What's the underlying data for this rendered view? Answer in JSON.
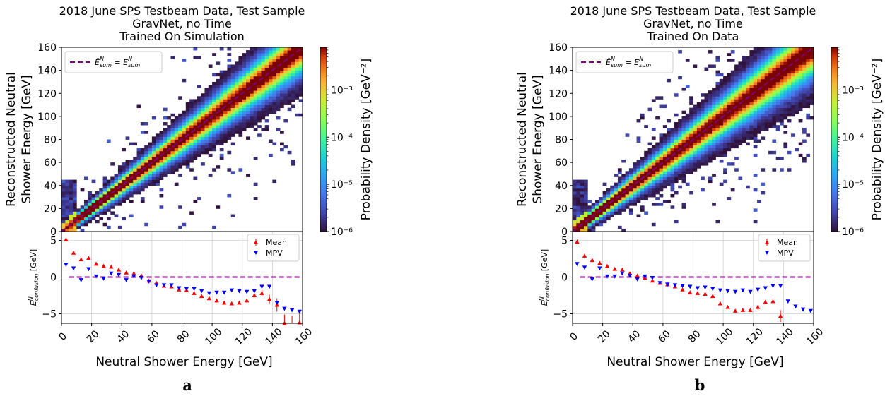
{
  "chart_data": [
    {
      "type": "heatmap",
      "panel_label": "a",
      "title_lines": [
        "2018 June SPS Testbeam Data, Test Sample",
        "GravNet, no Time",
        "Trained On Simulation"
      ],
      "xlabel": "Neutral Shower Energy [GeV]",
      "ylabel_lines": [
        "Reconstructed Neutral",
        "Shower Energy [GeV]"
      ],
      "xlim": [
        0,
        160
      ],
      "ylim": [
        0,
        160
      ],
      "xticks": [
        0,
        20,
        40,
        60,
        80,
        100,
        120,
        140,
        160
      ],
      "yticks": [
        0,
        20,
        40,
        60,
        80,
        100,
        120,
        140,
        160
      ],
      "legend": {
        "position": "upper-left",
        "entry": "Ê^N_sum = E^N_sum",
        "pre": "Ê",
        "sub": "sum",
        "sup": "N",
        "eq": " = E"
      },
      "diagonal": {
        "color": "#800080",
        "style": "dashed"
      },
      "colorbar": {
        "label": "Probability Density [GeV⁻²]",
        "scale": "log",
        "range": [
          1e-06,
          0.008
        ],
        "ticks": [
          {
            "value": 1e-06,
            "label": "10⁻⁶"
          },
          {
            "value": 1e-05,
            "label": "10⁻⁵"
          },
          {
            "value": 0.0001,
            "label": "10⁻⁴"
          },
          {
            "value": 0.001,
            "label": "10⁻³"
          }
        ]
      },
      "spread": 1.0,
      "residual": {
        "ylabel": "E^N_confusion [GeV]",
        "ylabel_base": "E",
        "ylabel_sup": "N",
        "ylabel_sub": "confusion",
        "ylabel_unit": " [GeV]",
        "ylim": [
          -6.3,
          6.2
        ],
        "yticks": [
          -5,
          0,
          5
        ],
        "zero_line_color": "#800080",
        "legend_position": "upper-right",
        "series": [
          {
            "name": "Mean",
            "color": "#ff0000",
            "marker": "triangle-up",
            "x": [
              3,
              8,
              13,
              18,
              23,
              28,
              33,
              38,
              43,
              48,
              53,
              58,
              63,
              68,
              73,
              78,
              83,
              88,
              93,
              98,
              103,
              108,
              113,
              118,
              123,
              128,
              133,
              138,
              143,
              148,
              153,
              158
            ],
            "y": [
              5.1,
              3.3,
              2.4,
              2.6,
              1.8,
              1.5,
              1.4,
              1.0,
              0.6,
              0.5,
              0.2,
              -0.5,
              -0.8,
              -1.2,
              -1.3,
              -1.7,
              -1.8,
              -2.2,
              -2.6,
              -2.9,
              -3.2,
              -3.5,
              -3.6,
              -3.5,
              -3.2,
              -2.5,
              -2.2,
              -3.0,
              -3.8,
              -6.3,
              -6.5,
              -6.2
            ],
            "err": [
              0.3,
              0.25,
              0.2,
              0.2,
              0.15,
              0.15,
              0.12,
              0.12,
              0.12,
              0.12,
              0.12,
              0.12,
              0.12,
              0.12,
              0.15,
              0.15,
              0.15,
              0.15,
              0.15,
              0.15,
              0.15,
              0.2,
              0.2,
              0.2,
              0.25,
              0.3,
              0.4,
              0.6,
              0.9,
              1.2,
              1.2,
              1.5
            ]
          },
          {
            "name": "MPV",
            "color": "#0000ff",
            "marker": "triangle-down",
            "x": [
              3,
              8,
              13,
              18,
              23,
              28,
              33,
              38,
              43,
              48,
              53,
              58,
              63,
              68,
              73,
              78,
              83,
              88,
              93,
              98,
              103,
              108,
              113,
              118,
              123,
              128,
              133,
              138,
              143,
              148,
              153,
              158
            ],
            "y": [
              1.7,
              1.2,
              -0.4,
              1.1,
              0.1,
              -0.2,
              0.5,
              0.3,
              -0.4,
              0.1,
              -0.1,
              -0.6,
              -1.1,
              -1.1,
              -1.1,
              -1.5,
              -1.6,
              -1.6,
              -1.9,
              -2.2,
              -2.1,
              -2.1,
              -1.8,
              -1.9,
              -2.0,
              -1.9,
              -1.3,
              -1.3,
              -3.5,
              -4.3,
              -4.5,
              -4.7
            ]
          }
        ]
      }
    },
    {
      "type": "heatmap",
      "panel_label": "b",
      "title_lines": [
        "2018 June SPS Testbeam Data, Test Sample",
        "GravNet, no Time",
        "Trained On Data"
      ],
      "xlabel": "Neutral Shower Energy [GeV]",
      "ylabel_lines": [
        "Reconstructed Neutral",
        "Shower Energy [GeV]"
      ],
      "xlim": [
        0,
        160
      ],
      "ylim": [
        0,
        160
      ],
      "xticks": [
        0,
        20,
        40,
        60,
        80,
        100,
        120,
        140,
        160
      ],
      "yticks": [
        0,
        20,
        40,
        60,
        80,
        100,
        120,
        140,
        160
      ],
      "legend": {
        "position": "upper-left",
        "entry": "Ê^N_sum = E^N_sum",
        "pre": "Ê",
        "sub": "sum",
        "sup": "N",
        "eq": " = E"
      },
      "diagonal": {
        "color": "#800080",
        "style": "dashed"
      },
      "colorbar": {
        "label": "Probability Density [GeV⁻²]",
        "scale": "log",
        "range": [
          1e-06,
          0.008
        ],
        "ticks": [
          {
            "value": 1e-06,
            "label": "10⁻⁶"
          },
          {
            "value": 1e-05,
            "label": "10⁻⁵"
          },
          {
            "value": 0.0001,
            "label": "10⁻⁴"
          },
          {
            "value": 0.001,
            "label": "10⁻³"
          }
        ]
      },
      "spread": 1.15,
      "residual": {
        "ylabel": "E^N_confusion [GeV]",
        "ylabel_base": "E",
        "ylabel_sup": "N",
        "ylabel_sub": "confusion",
        "ylabel_unit": " [GeV]",
        "ylim": [
          -6.3,
          6.2
        ],
        "yticks": [
          -5,
          0,
          5
        ],
        "zero_line_color": "#800080",
        "legend_position": "upper-right",
        "series": [
          {
            "name": "Mean",
            "color": "#ff0000",
            "marker": "triangle-up",
            "x": [
              3,
              8,
              13,
              18,
              23,
              28,
              33,
              38,
              43,
              48,
              53,
              58,
              63,
              68,
              73,
              78,
              83,
              88,
              93,
              98,
              103,
              108,
              113,
              118,
              123,
              128,
              133,
              138
            ],
            "y": [
              4.8,
              2.9,
              2.3,
              1.9,
              1.5,
              1.1,
              1.0,
              0.5,
              0.2,
              -0.1,
              -0.5,
              -0.8,
              -1.0,
              -1.3,
              -1.7,
              -2.1,
              -2.2,
              -2.3,
              -2.6,
              -3.6,
              -4.1,
              -4.6,
              -4.5,
              -4.5,
              -4.1,
              -3.4,
              -3.3,
              -5.3
            ],
            "err": [
              0.3,
              0.25,
              0.2,
              0.2,
              0.15,
              0.15,
              0.12,
              0.12,
              0.12,
              0.12,
              0.12,
              0.12,
              0.12,
              0.12,
              0.15,
              0.15,
              0.15,
              0.15,
              0.2,
              0.2,
              0.2,
              0.2,
              0.25,
              0.25,
              0.3,
              0.3,
              0.5,
              0.8
            ]
          },
          {
            "name": "MPV",
            "color": "#0000ff",
            "marker": "triangle-down",
            "x": [
              3,
              8,
              13,
              18,
              23,
              28,
              33,
              38,
              43,
              48,
              53,
              58,
              63,
              68,
              73,
              78,
              83,
              88,
              93,
              98,
              103,
              108,
              113,
              118,
              123,
              128,
              133,
              138,
              143,
              148,
              153,
              158
            ],
            "y": [
              1.8,
              1.3,
              -0.3,
              1.2,
              0.1,
              0.1,
              0.5,
              0.2,
              -0.3,
              0.1,
              -0.1,
              -0.8,
              -1.0,
              -1.1,
              -1.2,
              -1.3,
              -1.5,
              -1.4,
              -1.6,
              -1.8,
              -1.9,
              -2.0,
              -1.8,
              -2.0,
              -1.7,
              -1.5,
              -1.2,
              -1.2,
              -3.3,
              -4.0,
              -4.4,
              -4.6
            ]
          }
        ]
      }
    }
  ]
}
